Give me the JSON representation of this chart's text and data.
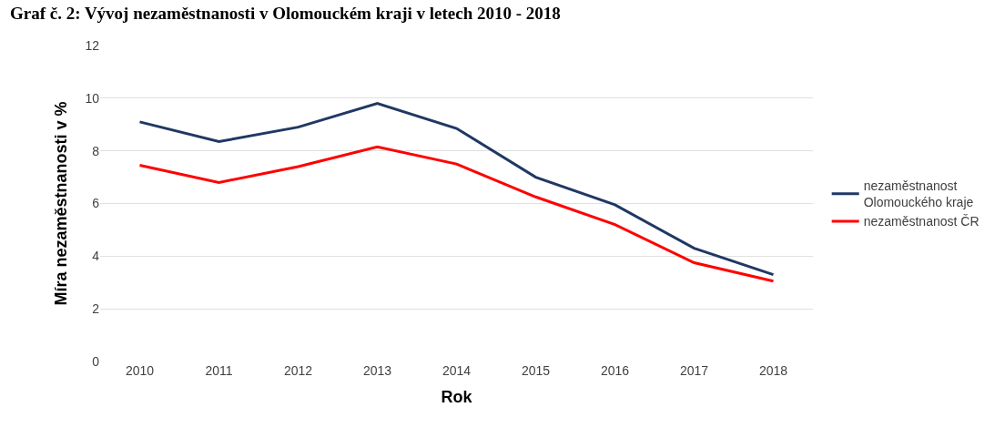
{
  "chart_data": {
    "type": "line",
    "title": "Graf č. 2: Vývoj nezaměstnanosti v Olomouckém kraji v letech 2010 - 2018",
    "xlabel": "Rok",
    "ylabel": "Míra nezaměstnanosti v %",
    "categories": [
      "2010",
      "2011",
      "2012",
      "2013",
      "2014",
      "2015",
      "2016",
      "2017",
      "2018"
    ],
    "series": [
      {
        "name": "nezaměstnanost\nOlomouckého kraje",
        "color": "#203864",
        "values": [
          9.1,
          8.35,
          8.9,
          9.8,
          8.85,
          7.0,
          5.95,
          4.3,
          3.3
        ]
      },
      {
        "name": "nezaměstnanost ČR",
        "color": "#ff0000",
        "values": [
          7.45,
          6.8,
          7.4,
          8.15,
          7.5,
          6.25,
          5.2,
          3.75,
          3.05
        ]
      }
    ],
    "ylim": [
      0,
      12
    ],
    "yticks": [
      0,
      2,
      4,
      6,
      8,
      10,
      12
    ],
    "grid": "y",
    "legend": "right",
    "marker": "none",
    "line_style": "solid"
  }
}
